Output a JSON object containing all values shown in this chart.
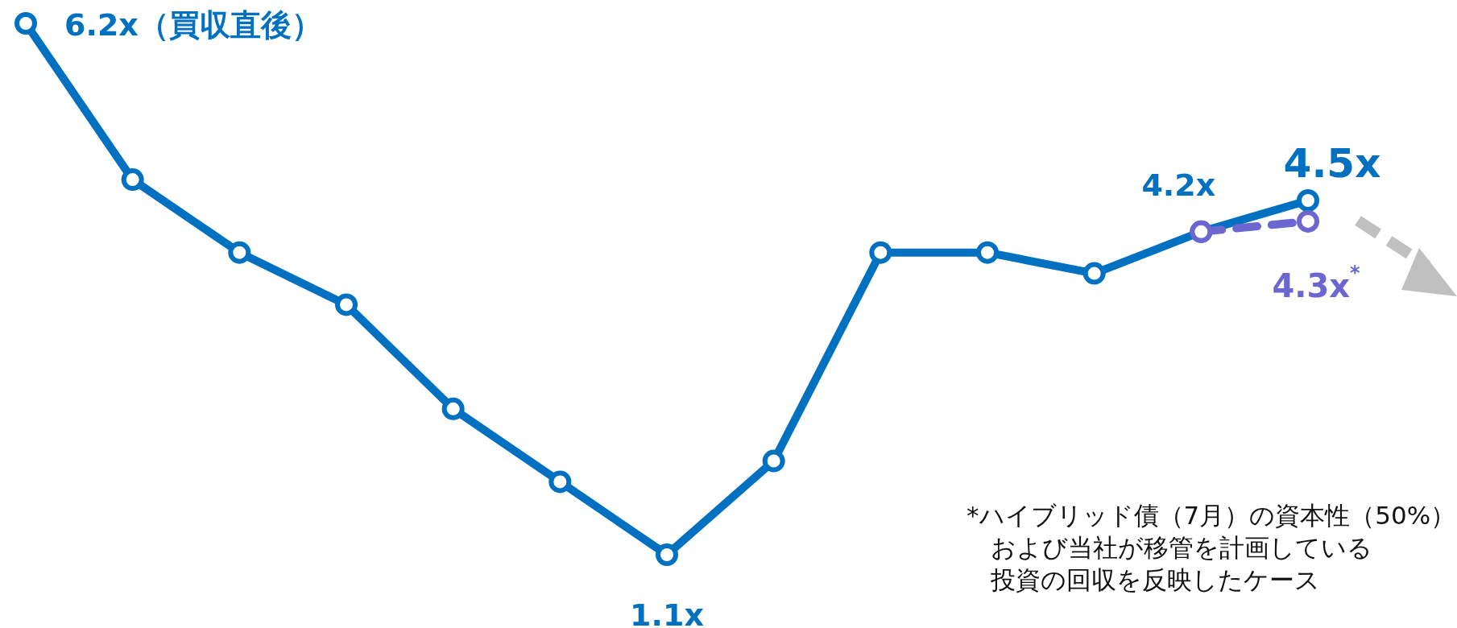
{
  "chart_data": {
    "type": "line",
    "categories": [
      null,
      null,
      null,
      null,
      null,
      null,
      null,
      null,
      null,
      null,
      null,
      null,
      null
    ],
    "series": [
      {
        "color": "#0070c0",
        "values": [
          6.2,
          4.7,
          4.0,
          3.5,
          2.5,
          1.8,
          1.1,
          2.0,
          4.0,
          4.0,
          3.8,
          4.2,
          4.5
        ],
        "value_labels": [
          "6.2x（買収直後）",
          null,
          null,
          null,
          null,
          null,
          "1.1x",
          null,
          null,
          null,
          null,
          "4.2x",
          "4.5x"
        ]
      },
      {
        "color": "#6b66d0",
        "line_style": "dashed",
        "values": [
          null,
          null,
          null,
          null,
          null,
          null,
          null,
          null,
          null,
          null,
          null,
          4.2,
          4.3
        ],
        "value_labels": [
          null,
          null,
          null,
          null,
          null,
          null,
          null,
          null,
          null,
          null,
          null,
          null,
          "4.3x$^{*}$"
        ]
      }
    ],
    "marker": "circle",
    "line_style": "solid",
    "tick_labels": false,
    "annotations": [
      "*ハイブリッド債（7月）の資本性（50%）",
      "および当社が移管を計画している",
      "投資の回収を反映したケース"
    ]
  }
}
